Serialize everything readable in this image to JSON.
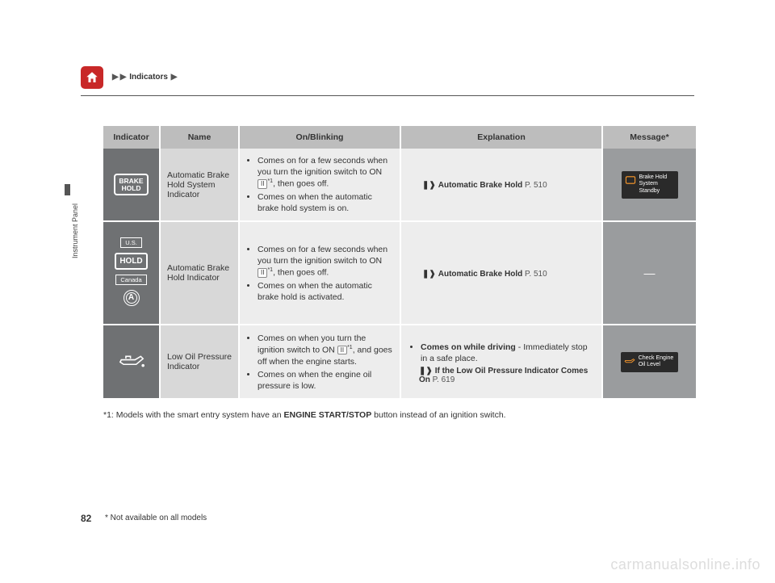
{
  "breadcrumb": {
    "triangle": "▶",
    "label": "Indicators"
  },
  "sideLabel": "Instrument Panel",
  "pageNumber": "82",
  "footnoteBottom": "* Not available on all models",
  "footnote1_prefix": "*1: Models with the smart entry system have an ",
  "footnote1_bold": "ENGINE START/STOP",
  "footnote1_suffix": " button instead of an ignition switch.",
  "watermark": "carmanualsonline.info",
  "headers": {
    "indicator": "Indicator",
    "name": "Name",
    "onBlinking": "On/Blinking",
    "explanation": "Explanation",
    "message": "Message*"
  },
  "rows": [
    {
      "indicator": {
        "type": "brakehold",
        "line1": "BRAKE",
        "line2": "HOLD"
      },
      "name": "Automatic Brake Hold System Indicator",
      "on": [
        {
          "pre": "Comes on for a few seconds when you turn the ignition switch to ON ",
          "key": "II",
          "sup": "*1",
          "post": ", then goes off."
        },
        {
          "pre": "Comes on when the automatic brake hold system is on."
        }
      ],
      "exp": {
        "refs": [
          {
            "bold": "Automatic Brake Hold",
            "page": "P. 510"
          }
        ]
      },
      "msg": {
        "type": "chip",
        "icon": "brakehold",
        "text": "Brake Hold\nSystem\nStandby"
      }
    },
    {
      "indicator": {
        "type": "hold_regions"
      },
      "name": "Automatic Brake Hold Indicator",
      "on": [
        {
          "pre": "Comes on for a few seconds when you turn the ignition switch to ON ",
          "key": "II",
          "sup": "*1",
          "post": ", then goes off."
        },
        {
          "pre": "Comes on when the automatic brake hold is activated."
        }
      ],
      "exp": {
        "refs": [
          {
            "bold": "Automatic Brake Hold",
            "page": "P. 510"
          }
        ]
      },
      "msg": {
        "type": "dash",
        "text": "—"
      }
    },
    {
      "indicator": {
        "type": "oilcan"
      },
      "name": "Low Oil Pressure Indicator",
      "on": [
        {
          "pre": "Comes on when you turn the ignition switch to ON ",
          "key": "II",
          "sup": "*1",
          "post": ", and goes off when the engine starts."
        },
        {
          "pre": "Comes on when the engine oil pressure is low."
        }
      ],
      "exp": {
        "bullets": [
          {
            "bold": "Comes on while driving",
            "rest": " - Immediately stop in a safe place."
          }
        ],
        "refs": [
          {
            "bold": "If the Low Oil Pressure Indicator Comes On",
            "page": "P. 619"
          }
        ]
      },
      "msg": {
        "type": "chip",
        "icon": "oilcan",
        "text": "Check Engine\nOil Level"
      }
    }
  ],
  "regions": {
    "us": "U.S.",
    "canada": "Canada",
    "hold": "HOLD",
    "a": "A"
  }
}
